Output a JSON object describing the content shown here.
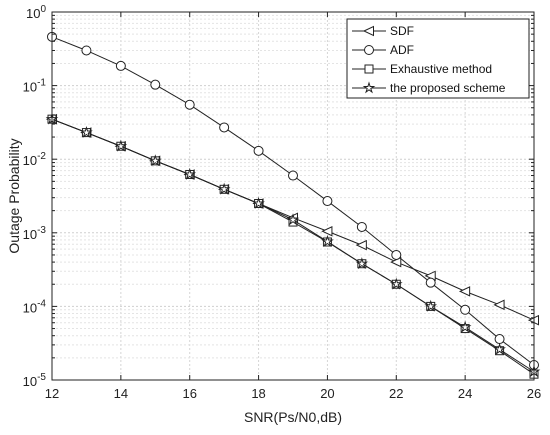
{
  "chart_data": {
    "type": "line",
    "xlabel": "SNR(Ps/N0,dB)",
    "ylabel": "Outage Probability",
    "x_scale": "linear",
    "y_scale": "log",
    "xlim": [
      12,
      26
    ],
    "ylim": [
      1e-05,
      1
    ],
    "grid": true,
    "legend_position": "top-right",
    "x_ticks": [
      12,
      14,
      16,
      18,
      20,
      22,
      24,
      26
    ],
    "y_ticks": [
      {
        "value": 1,
        "base": "10",
        "exp": "0"
      },
      {
        "value": 0.1,
        "base": "10",
        "exp": "-1"
      },
      {
        "value": 0.01,
        "base": "10",
        "exp": "-2"
      },
      {
        "value": 0.001,
        "base": "10",
        "exp": "-3"
      },
      {
        "value": 0.0001,
        "base": "10",
        "exp": "-4"
      },
      {
        "value": 1e-05,
        "base": "10",
        "exp": "-5"
      }
    ],
    "x": [
      12,
      13,
      14,
      15,
      16,
      17,
      18,
      19,
      20,
      21,
      22,
      23,
      24,
      25,
      26
    ],
    "series": [
      {
        "name": "SDF",
        "marker": "triangle-left",
        "values": [
          0.035,
          0.023,
          0.015,
          0.0095,
          0.0062,
          0.0039,
          0.0025,
          0.0016,
          0.00105,
          0.00068,
          0.0004,
          0.00026,
          0.00016,
          0.000105,
          6.5e-05
        ]
      },
      {
        "name": "ADF",
        "marker": "circle",
        "values": [
          0.46,
          0.3,
          0.185,
          0.103,
          0.055,
          0.027,
          0.013,
          0.006,
          0.0027,
          0.0012,
          0.0005,
          0.00021,
          9e-05,
          3.6e-05,
          1.6e-05
        ]
      },
      {
        "name": "Exhaustive method",
        "marker": "square",
        "values": [
          0.035,
          0.023,
          0.015,
          0.0095,
          0.0062,
          0.0039,
          0.0025,
          0.0014,
          0.00075,
          0.00038,
          0.0002,
          0.0001,
          5e-05,
          2.5e-05,
          1.2e-05
        ]
      },
      {
        "name": "the proposed scheme",
        "marker": "star",
        "values": [
          0.035,
          0.023,
          0.015,
          0.0095,
          0.0062,
          0.0039,
          0.0025,
          0.0015,
          0.00076,
          0.00038,
          0.0002,
          0.0001,
          5.2e-05,
          2.6e-05,
          1.3e-05
        ]
      }
    ]
  }
}
